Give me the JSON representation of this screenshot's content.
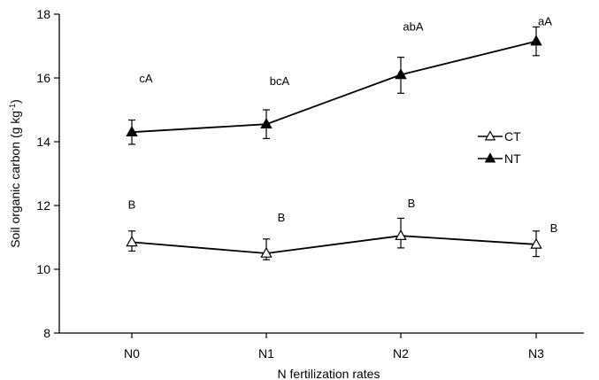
{
  "chart_data": {
    "type": "line",
    "categories": [
      "N0",
      "N1",
      "N2",
      "N3"
    ],
    "xlabel": "N fertilization rates",
    "ylabel": "Soil organic carbon (g kg",
    "ylabel_superscript": "-1",
    "ylabel_suffix": ")",
    "ylim": [
      8,
      18
    ],
    "yticks": [
      8,
      10,
      12,
      14,
      16,
      18
    ],
    "grid": false,
    "legend_position": "right",
    "series": [
      {
        "name": "CT",
        "marker": "open-triangle",
        "color": "#000000",
        "values": [
          10.85,
          10.5,
          11.05,
          10.78
        ],
        "error_up": [
          0.35,
          0.45,
          0.55,
          0.42
        ],
        "error_down": [
          0.28,
          0.2,
          0.38,
          0.38
        ],
        "labels": [
          "B",
          "B",
          "B",
          "B"
        ]
      },
      {
        "name": "NT",
        "marker": "filled-triangle",
        "color": "#000000",
        "values": [
          14.3,
          14.55,
          16.1,
          17.15
        ],
        "error_up": [
          0.38,
          0.45,
          0.55,
          0.45
        ],
        "error_down": [
          0.38,
          0.45,
          0.58,
          0.45
        ],
        "labels": [
          "cA",
          "bcA",
          "abA",
          "aA"
        ]
      }
    ]
  }
}
